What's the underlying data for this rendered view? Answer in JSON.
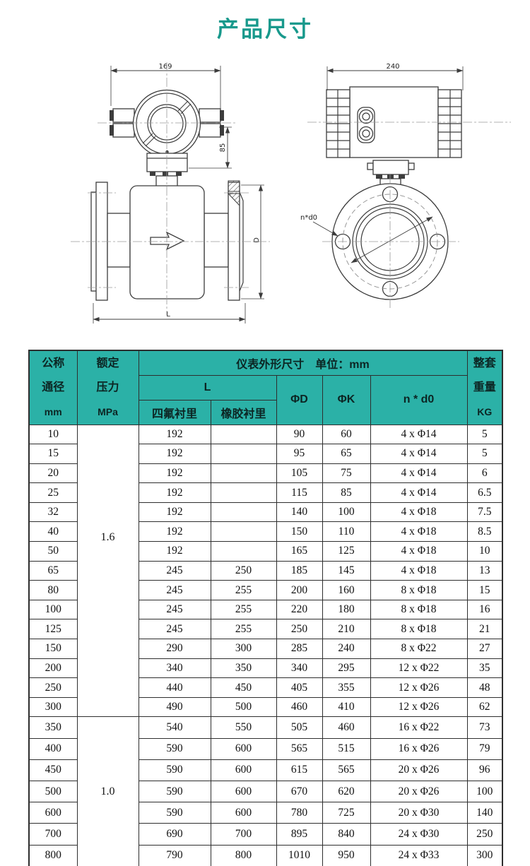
{
  "page": {
    "title": "产品尺寸"
  },
  "colors": {
    "title_teal": "#18998c",
    "header_teal": "#2bb1a7",
    "table_border": "#2e2e2e",
    "drawing_line": "#3c3c3c"
  },
  "drawing": {
    "left_view": {
      "width_dim": "169",
      "height_dim": "85",
      "length_dim": "L",
      "diameter_dim": "D"
    },
    "right_view": {
      "width_dim": "240",
      "bolt_holes_label": "n*d0"
    }
  },
  "table": {
    "header": {
      "col_dn": [
        "公称",
        "通径",
        "mm"
      ],
      "col_pressure": [
        "额定",
        "压力",
        "MPa"
      ],
      "dims_title": "仪表外形尺寸　单位：mm",
      "l_label": "L",
      "ptfe_label": "四氟衬里",
      "rubber_label": "橡胶衬里",
      "phi_d_label": "ΦD",
      "phi_k_label": "ΦK",
      "n_d0_label": "n * d0",
      "col_weight": [
        "整套",
        "重量",
        "KG"
      ]
    },
    "groups": [
      {
        "pressure": "1.6",
        "rows": [
          [
            "10",
            "192",
            "",
            "90",
            "60",
            "4 x Φ14",
            "5"
          ],
          [
            "15",
            "192",
            "",
            "95",
            "65",
            "4 x Φ14",
            "5"
          ],
          [
            "20",
            "192",
            "",
            "105",
            "75",
            "4 x Φ14",
            "6"
          ],
          [
            "25",
            "192",
            "",
            "115",
            "85",
            "4 x Φ14",
            "6.5"
          ],
          [
            "32",
            "192",
            "",
            "140",
            "100",
            "4 x Φ18",
            "7.5"
          ],
          [
            "40",
            "192",
            "",
            "150",
            "110",
            "4 x Φ18",
            "8.5"
          ],
          [
            "50",
            "192",
            "",
            "165",
            "125",
            "4 x Φ18",
            "10"
          ],
          [
            "65",
            "245",
            "250",
            "185",
            "145",
            "4 x Φ18",
            "13"
          ],
          [
            "80",
            "245",
            "255",
            "200",
            "160",
            "8 x Φ18",
            "15"
          ],
          [
            "100",
            "245",
            "255",
            "220",
            "180",
            "8 x Φ18",
            "16"
          ],
          [
            "125",
            "245",
            "255",
            "250",
            "210",
            "8 x Φ18",
            "21"
          ],
          [
            "150",
            "290",
            "300",
            "285",
            "240",
            "8 x Φ22",
            "27"
          ],
          [
            "200",
            "340",
            "350",
            "340",
            "295",
            "12 x Φ22",
            "35"
          ],
          [
            "250",
            "440",
            "450",
            "405",
            "355",
            "12 x Φ26",
            "48"
          ],
          [
            "300",
            "490",
            "500",
            "460",
            "410",
            "12 x Φ26",
            "62"
          ]
        ]
      },
      {
        "pressure": "1.0",
        "rows": [
          [
            "350",
            "540",
            "550",
            "505",
            "460",
            "16 x Φ22",
            "73"
          ],
          [
            "400",
            "590",
            "600",
            "565",
            "515",
            "16 x Φ26",
            "79"
          ],
          [
            "450",
            "590",
            "600",
            "615",
            "565",
            "20 x Φ26",
            "96"
          ],
          [
            "500",
            "590",
            "600",
            "670",
            "620",
            "20 x Φ26",
            "100"
          ],
          [
            "600",
            "590",
            "600",
            "780",
            "725",
            "20 x Φ30",
            "140"
          ],
          [
            "700",
            "690",
            "700",
            "895",
            "840",
            "24 x Φ30",
            "250"
          ],
          [
            "800",
            "790",
            "800",
            "1010",
            "950",
            "24 x Φ33",
            "300"
          ]
        ]
      }
    ]
  }
}
